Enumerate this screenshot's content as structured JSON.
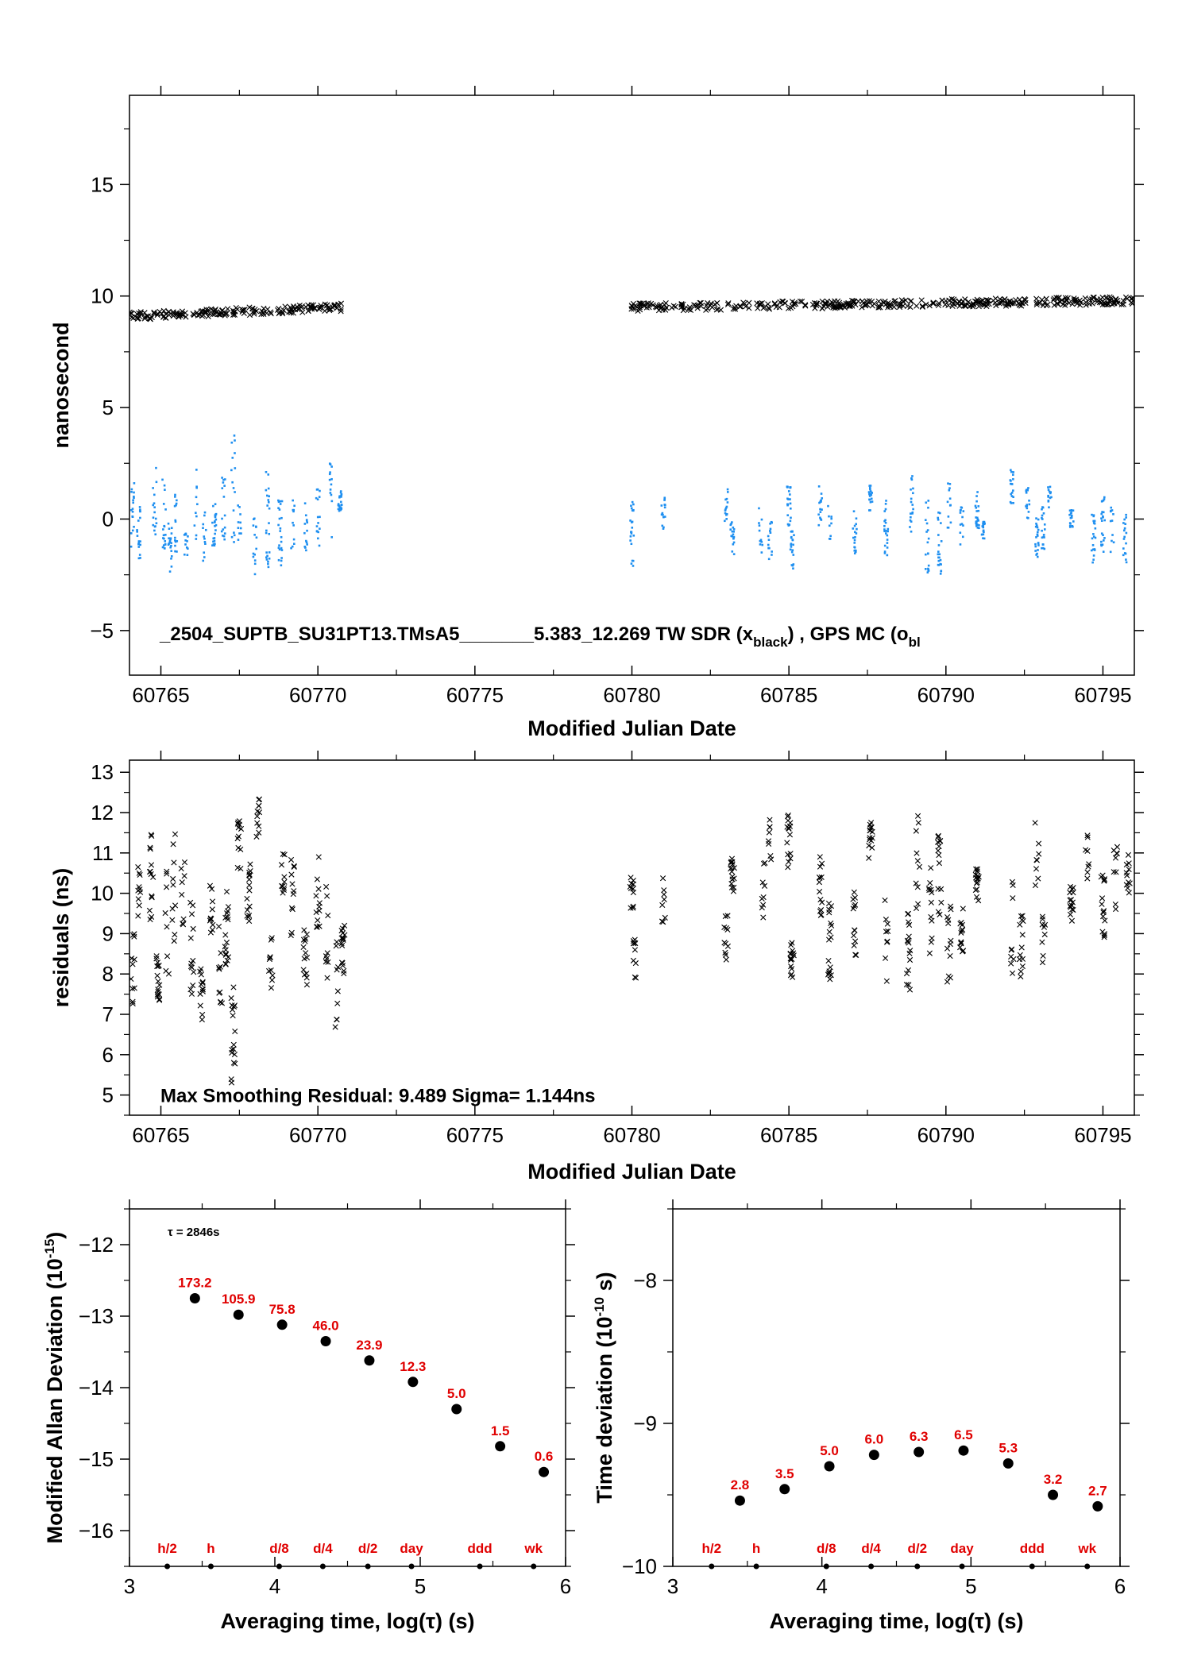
{
  "chart_data": [
    {
      "type": "scatter",
      "xlabel": "Modified Julian Date",
      "ylabel": "nanosecond",
      "xlim": [
        60764,
        60796
      ],
      "ylim": [
        -7,
        19
      ],
      "xticks": [
        60765,
        60770,
        60775,
        60780,
        60785,
        60790,
        60795
      ],
      "yticks": [
        -5,
        0,
        5,
        10,
        15
      ],
      "annotation": "_2504_SUPTB_SU31PT13.TMsA5_______5.383_12.269     TW SDR (xblack) ,  GPS MC (obl",
      "annotation_parts": {
        "main": "_2504_SUPTB_SU31PT13.TMsA5_______5.383_12.269     TW SDR (x",
        "sub1": "black",
        "mid": ") ,  GPS MC (o",
        "sub2": "bl"
      },
      "series": [
        {
          "marker": "x",
          "color": "#000000",
          "segments": [
            {
              "x0": 60764.0,
              "x1": 60770.9,
              "y0": 9.1,
              "y1": 9.5
            },
            {
              "x0": 60780.0,
              "x1": 60796.0,
              "y0": 9.5,
              "y1": 9.8
            }
          ]
        },
        {
          "marker": "dot",
          "color": "#1e8ff0",
          "clusters": [
            [
              60764.1,
              0.2,
              1.6
            ],
            [
              60764.3,
              -0.6,
              1.2
            ],
            [
              60764.8,
              0.6,
              1.7
            ],
            [
              60765.1,
              0.2,
              1.6
            ],
            [
              60765.3,
              -1.4,
              1.3
            ],
            [
              60765.5,
              -0.2,
              1.6
            ],
            [
              60765.8,
              -1.1,
              0.6
            ],
            [
              60766.1,
              0.5,
              1.8
            ],
            [
              60766.4,
              -0.8,
              1.1
            ],
            [
              60766.7,
              -0.3,
              1.0
            ],
            [
              60767.0,
              0.4,
              1.5
            ],
            [
              60767.3,
              1.4,
              2.6
            ],
            [
              60767.5,
              -0.5,
              1.2
            ],
            [
              60768.0,
              -1.2,
              1.5
            ],
            [
              60768.4,
              0.0,
              2.2
            ],
            [
              60768.8,
              -0.6,
              1.5
            ],
            [
              60769.2,
              -0.3,
              1.2
            ],
            [
              60769.6,
              -0.2,
              1.4
            ],
            [
              60770.0,
              0.1,
              1.3
            ],
            [
              60770.4,
              0.8,
              1.7
            ],
            [
              60770.7,
              0.9,
              0.6
            ],
            [
              60780.0,
              -0.6,
              1.6
            ],
            [
              60781.0,
              0.2,
              0.8
            ],
            [
              60783.0,
              0.6,
              0.8
            ],
            [
              60783.2,
              -0.8,
              0.8
            ],
            [
              60784.1,
              -0.7,
              1.2
            ],
            [
              60784.4,
              -0.9,
              0.9
            ],
            [
              60785.0,
              0.6,
              0.9
            ],
            [
              60785.1,
              -1.4,
              0.9
            ],
            [
              60786.0,
              0.6,
              0.9
            ],
            [
              60786.3,
              0.3,
              1.2
            ],
            [
              60787.1,
              -0.6,
              1.0
            ],
            [
              60787.6,
              0.9,
              0.6
            ],
            [
              60788.1,
              -0.6,
              1.5
            ],
            [
              60788.9,
              0.7,
              1.3
            ],
            [
              60789.4,
              -0.7,
              1.7
            ],
            [
              60789.8,
              -1.1,
              1.4
            ],
            [
              60790.1,
              0.6,
              1.2
            ],
            [
              60790.5,
              -0.3,
              0.9
            ],
            [
              60791.0,
              0.4,
              0.9
            ],
            [
              60791.2,
              -0.5,
              0.4
            ],
            [
              60792.1,
              1.4,
              0.8
            ],
            [
              60792.6,
              0.7,
              0.7
            ],
            [
              60792.9,
              -0.8,
              0.9
            ],
            [
              60793.1,
              -0.4,
              1.0
            ],
            [
              60793.3,
              0.9,
              0.6
            ],
            [
              60794.0,
              0.0,
              0.4
            ],
            [
              60794.7,
              -0.9,
              1.1
            ],
            [
              60795.0,
              -0.3,
              1.3
            ],
            [
              60795.3,
              -0.5,
              1.1
            ],
            [
              60795.7,
              -0.9,
              1.1
            ]
          ]
        }
      ]
    },
    {
      "type": "scatter",
      "xlabel": "Modified Julian Date",
      "ylabel": "residuals (ns)",
      "xlim": [
        60764,
        60796
      ],
      "ylim": [
        4.5,
        13.3
      ],
      "xticks": [
        60765,
        60770,
        60775,
        60780,
        60785,
        60790,
        60795
      ],
      "yticks": [
        5,
        6,
        7,
        8,
        9,
        10,
        11,
        12,
        13
      ],
      "annotation": "Max Smoothing Residual: 9.489  Sigma= 1.144ns",
      "series": [
        {
          "marker": "x",
          "color": "#000000",
          "clusters": [
            [
              60764.1,
              8.3,
              1.1
            ],
            [
              60764.3,
              9.7,
              1.0
            ],
            [
              60764.7,
              10.1,
              1.4
            ],
            [
              60764.9,
              7.9,
              0.6
            ],
            [
              60765.2,
              9.3,
              1.4
            ],
            [
              60765.4,
              10.2,
              1.5
            ],
            [
              60765.7,
              9.9,
              1.0
            ],
            [
              60766.0,
              8.6,
              1.3
            ],
            [
              60766.3,
              7.5,
              0.8
            ],
            [
              60766.6,
              9.8,
              0.8
            ],
            [
              60766.9,
              8.4,
              1.4
            ],
            [
              60767.1,
              9.2,
              1.1
            ],
            [
              60767.3,
              6.5,
              1.2
            ],
            [
              60767.5,
              11.2,
              0.6
            ],
            [
              60767.8,
              10.0,
              0.8
            ],
            [
              60768.1,
              11.9,
              0.5
            ],
            [
              60768.5,
              8.0,
              1.0
            ],
            [
              60768.9,
              10.5,
              0.5
            ],
            [
              60769.2,
              9.7,
              1.2
            ],
            [
              60769.6,
              8.4,
              0.7
            ],
            [
              60770.0,
              10.0,
              0.9
            ],
            [
              60770.3,
              9.0,
              1.3
            ],
            [
              60770.6,
              7.6,
              1.2
            ],
            [
              60770.8,
              8.6,
              0.6
            ],
            [
              60780.0,
              10.0,
              0.5
            ],
            [
              60780.1,
              8.4,
              0.5
            ],
            [
              60781.0,
              9.8,
              0.6
            ],
            [
              60783.0,
              8.9,
              0.6
            ],
            [
              60783.2,
              10.6,
              0.6
            ],
            [
              60784.2,
              10.2,
              0.8
            ],
            [
              60784.4,
              11.2,
              0.7
            ],
            [
              60785.0,
              11.3,
              0.7
            ],
            [
              60785.1,
              8.4,
              0.5
            ],
            [
              60786.0,
              10.3,
              0.9
            ],
            [
              60786.3,
              8.8,
              1.0
            ],
            [
              60787.1,
              9.2,
              0.9
            ],
            [
              60787.6,
              11.3,
              0.5
            ],
            [
              60788.1,
              9.0,
              1.2
            ],
            [
              60788.8,
              8.6,
              1.0
            ],
            [
              60789.1,
              10.8,
              1.3
            ],
            [
              60789.5,
              9.6,
              1.2
            ],
            [
              60789.8,
              10.5,
              1.1
            ],
            [
              60790.1,
              8.8,
              1.0
            ],
            [
              60790.5,
              9.1,
              0.6
            ],
            [
              60791.0,
              10.2,
              0.4
            ],
            [
              60792.1,
              9.3,
              1.3
            ],
            [
              60792.4,
              8.7,
              0.8
            ],
            [
              60792.9,
              10.8,
              1.0
            ],
            [
              60793.1,
              9.3,
              1.1
            ],
            [
              60794.0,
              9.8,
              0.5
            ],
            [
              60794.5,
              10.6,
              0.9
            ],
            [
              60795.0,
              9.7,
              0.8
            ],
            [
              60795.4,
              10.5,
              1.0
            ],
            [
              60795.8,
              10.4,
              0.6
            ]
          ]
        }
      ]
    },
    {
      "type": "scatter",
      "xlabel": "Averaging time, log(τ) (s)",
      "ylabel": "Modified Allan Deviation (10",
      "ylabel_sup": "-15",
      "ylabel_end": ")",
      "xlim": [
        3,
        6
      ],
      "ylim": [
        -16.5,
        -11.5
      ],
      "xticks": [
        3,
        4,
        5,
        6
      ],
      "yticks": [
        -16,
        -15,
        -14,
        -13,
        -12
      ],
      "tau_note": "τ = 2846s",
      "points": [
        {
          "x": 3.45,
          "y": -12.75,
          "label": "173.2"
        },
        {
          "x": 3.75,
          "y": -12.98,
          "label": "105.9"
        },
        {
          "x": 4.05,
          "y": -13.12,
          "label": "75.8"
        },
        {
          "x": 4.35,
          "y": -13.35,
          "label": "46.0"
        },
        {
          "x": 4.65,
          "y": -13.62,
          "label": "23.9"
        },
        {
          "x": 4.95,
          "y": -13.92,
          "label": "12.3"
        },
        {
          "x": 5.25,
          "y": -14.3,
          "label": "5.0"
        },
        {
          "x": 5.55,
          "y": -14.82,
          "label": "1.5"
        },
        {
          "x": 5.85,
          "y": -15.18,
          "label": "0.6"
        }
      ],
      "markers": [
        {
          "x": 3.26,
          "label": "h/2"
        },
        {
          "x": 3.56,
          "label": "h"
        },
        {
          "x": 4.03,
          "label": "d/8"
        },
        {
          "x": 4.33,
          "label": "d/4"
        },
        {
          "x": 4.64,
          "label": "d/2"
        },
        {
          "x": 4.94,
          "label": "day"
        },
        {
          "x": 5.41,
          "label": "ddd"
        },
        {
          "x": 5.78,
          "label": "wk"
        }
      ]
    },
    {
      "type": "scatter",
      "xlabel": "Averaging time, log(τ) (s)",
      "ylabel": "Time deviation (10",
      "ylabel_sup": "-10",
      "ylabel_end": " s)",
      "xlim": [
        3,
        6
      ],
      "ylim": [
        -10,
        -7.5
      ],
      "xticks": [
        3,
        4,
        5,
        6
      ],
      "yticks": [
        -10,
        -9,
        -8
      ],
      "points": [
        {
          "x": 3.45,
          "y": -9.54,
          "label": "2.8"
        },
        {
          "x": 3.75,
          "y": -9.46,
          "label": "3.5"
        },
        {
          "x": 4.05,
          "y": -9.3,
          "label": "5.0"
        },
        {
          "x": 4.35,
          "y": -9.22,
          "label": "6.0"
        },
        {
          "x": 4.65,
          "y": -9.2,
          "label": "6.3"
        },
        {
          "x": 4.95,
          "y": -9.19,
          "label": "6.5"
        },
        {
          "x": 5.25,
          "y": -9.28,
          "label": "5.3"
        },
        {
          "x": 5.55,
          "y": -9.5,
          "label": "3.2"
        },
        {
          "x": 5.85,
          "y": -9.58,
          "label": "2.7"
        }
      ],
      "markers": [
        {
          "x": 3.26,
          "label": "h/2"
        },
        {
          "x": 3.56,
          "label": "h"
        },
        {
          "x": 4.03,
          "label": "d/8"
        },
        {
          "x": 4.33,
          "label": "d/4"
        },
        {
          "x": 4.64,
          "label": "d/2"
        },
        {
          "x": 4.94,
          "label": "day"
        },
        {
          "x": 5.41,
          "label": "ddd"
        },
        {
          "x": 5.78,
          "label": "wk"
        }
      ]
    }
  ]
}
